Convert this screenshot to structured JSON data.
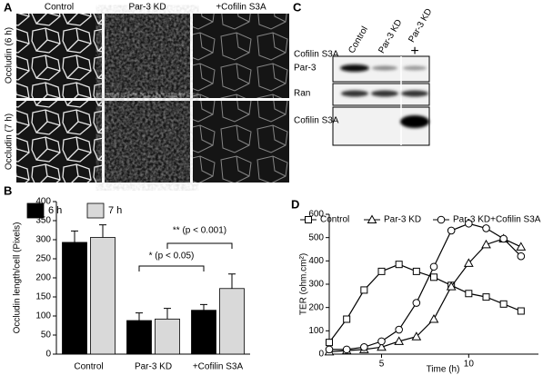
{
  "panels": {
    "a": "A",
    "b": "B",
    "c": "C",
    "d": "D"
  },
  "micrographs": {
    "columns": [
      "Control",
      "Par-3 KD",
      "+Cofilin S3A"
    ],
    "rows": [
      "Occludin (6 h)",
      "Occludin (7 h)"
    ]
  },
  "blot": {
    "lanes": [
      "Control",
      "Par-3 KD",
      "Par-3 KD"
    ],
    "treatment": "Cofilin S3A",
    "treatment_mark": "+",
    "bands": [
      "Par-3",
      "Ran",
      "Cofilin S3A"
    ]
  },
  "chart_data": [
    {
      "type": "bar",
      "ylabel": "Occludin length/cell (Pixels)",
      "categories": [
        "Control",
        "Par-3 KD",
        "+Cofilin S3A"
      ],
      "series": [
        {
          "name": "6 h",
          "color": "#000000",
          "values": [
            293,
            88,
            115
          ],
          "errors": [
            30,
            20,
            15
          ]
        },
        {
          "name": "7 h",
          "color": "#d9d9d9",
          "values": [
            306,
            92,
            172
          ],
          "errors": [
            33,
            28,
            38
          ]
        }
      ],
      "ylim": [
        0,
        400
      ],
      "yticks": [
        0,
        50,
        100,
        150,
        200,
        250,
        300,
        350,
        400
      ],
      "annotations": [
        "* (p < 0.05)",
        "** (p < 0.001)"
      ]
    },
    {
      "type": "line",
      "xlabel": "Time (h)",
      "ylabel": "TER (ohm.cm²)",
      "x": [
        2,
        3,
        4,
        5,
        6,
        7,
        8,
        9,
        10,
        11,
        12,
        13
      ],
      "series": [
        {
          "name": "Control",
          "color": "#000000",
          "marker": "square",
          "values": [
            50,
            150,
            275,
            355,
            385,
            355,
            330,
            295,
            260,
            245,
            215,
            185
          ]
        },
        {
          "name": "Par-3 KD",
          "color": "#000000",
          "marker": "triangle",
          "values": [
            10,
            15,
            20,
            30,
            55,
            75,
            150,
            290,
            390,
            470,
            495,
            460
          ]
        },
        {
          "name": "Par-3 KD+Cofilin S3A",
          "color": "#000000",
          "marker": "circle",
          "values": [
            20,
            20,
            30,
            55,
            105,
            220,
            375,
            530,
            560,
            540,
            495,
            420
          ]
        }
      ],
      "xlim": [
        2,
        14
      ],
      "xticks": [
        5,
        10
      ],
      "ylim": [
        0,
        600
      ],
      "yticks": [
        0,
        100,
        200,
        300,
        400,
        500,
        600
      ]
    }
  ]
}
